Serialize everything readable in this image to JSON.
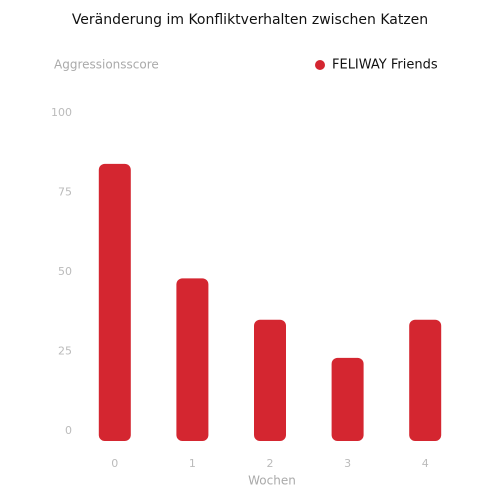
{
  "chart_data": {
    "type": "bar",
    "title": "Veränderung im Konfliktverhalten zwischen Katzen",
    "y_label": "Aggressionsscore",
    "x_label": "Wochen",
    "categories": [
      0,
      1,
      2,
      3,
      4
    ],
    "series": [
      {
        "name": "FELIWAY Friends",
        "color": "#d42630",
        "values": [
          84,
          48,
          35,
          23,
          35
        ]
      }
    ],
    "ylim": [
      0,
      100
    ],
    "yticks": [
      0,
      25,
      50,
      75,
      100
    ],
    "legend": "top-right"
  }
}
